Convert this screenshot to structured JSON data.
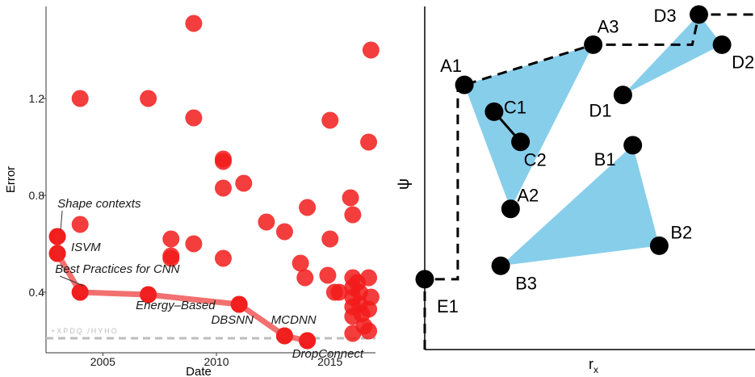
{
  "chart_data": [
    {
      "type": "scatter",
      "xlabel": "Date",
      "ylabel": "Error",
      "xlim": [
        2002.5,
        2017.0
      ],
      "ylim": [
        0.15,
        1.58
      ],
      "x_ticks": [
        2005,
        2010,
        2015
      ],
      "x_tick_labels": [
        "2005",
        "2010",
        "2015"
      ],
      "y_ticks": [
        0.4,
        0.8,
        1.2
      ],
      "y_tick_labels": [
        "0.4",
        "0.8",
        "1.2"
      ],
      "grid": false,
      "colors": {
        "points": "#f21b1b",
        "frontier": "#f26060",
        "baseline": "#bdbdbd"
      },
      "baseline": {
        "y": 0.21,
        "label": "+XPDQ /HYHO"
      },
      "points": [
        {
          "x": 2003.0,
          "y": 0.63
        },
        {
          "x": 2003.0,
          "y": 0.56
        },
        {
          "x": 2004.0,
          "y": 0.4
        },
        {
          "x": 2004.0,
          "y": 1.2
        },
        {
          "x": 2004.0,
          "y": 0.68
        },
        {
          "x": 2007.0,
          "y": 0.39
        },
        {
          "x": 2007.0,
          "y": 1.2
        },
        {
          "x": 2008.0,
          "y": 0.62
        },
        {
          "x": 2008.0,
          "y": 0.55
        },
        {
          "x": 2008.0,
          "y": 0.54
        },
        {
          "x": 2009.0,
          "y": 1.51
        },
        {
          "x": 2009.0,
          "y": 1.12
        },
        {
          "x": 2009.0,
          "y": 0.6
        },
        {
          "x": 2010.3,
          "y": 0.95
        },
        {
          "x": 2010.3,
          "y": 0.94
        },
        {
          "x": 2010.3,
          "y": 0.83
        },
        {
          "x": 2010.3,
          "y": 0.54
        },
        {
          "x": 2011.0,
          "y": 0.35
        },
        {
          "x": 2011.2,
          "y": 0.85
        },
        {
          "x": 2012.2,
          "y": 0.69
        },
        {
          "x": 2013.0,
          "y": 0.65
        },
        {
          "x": 2013.0,
          "y": 0.22
        },
        {
          "x": 2013.7,
          "y": 0.52
        },
        {
          "x": 2013.9,
          "y": 0.46
        },
        {
          "x": 2014.0,
          "y": 0.75
        },
        {
          "x": 2014.0,
          "y": 0.2
        },
        {
          "x": 2014.9,
          "y": 0.47
        },
        {
          "x": 2015.0,
          "y": 1.11
        },
        {
          "x": 2015.0,
          "y": 0.62
        },
        {
          "x": 2015.2,
          "y": 0.4
        },
        {
          "x": 2015.4,
          "y": 0.4
        },
        {
          "x": 2015.9,
          "y": 0.79
        },
        {
          "x": 2016.0,
          "y": 0.72
        },
        {
          "x": 2016.0,
          "y": 0.46
        },
        {
          "x": 2016.0,
          "y": 0.42
        },
        {
          "x": 2016.0,
          "y": 0.38
        },
        {
          "x": 2016.0,
          "y": 0.34
        },
        {
          "x": 2016.0,
          "y": 0.3
        },
        {
          "x": 2016.0,
          "y": 0.23
        },
        {
          "x": 2016.2,
          "y": 0.44
        },
        {
          "x": 2016.3,
          "y": 0.4
        },
        {
          "x": 2016.3,
          "y": 0.35
        },
        {
          "x": 2016.4,
          "y": 0.31
        },
        {
          "x": 2016.5,
          "y": 0.26
        },
        {
          "x": 2016.7,
          "y": 1.02
        },
        {
          "x": 2016.7,
          "y": 0.46
        },
        {
          "x": 2016.7,
          "y": 0.33
        },
        {
          "x": 2016.7,
          "y": 0.24
        },
        {
          "x": 2016.8,
          "y": 1.4
        },
        {
          "x": 2016.8,
          "y": 0.38
        }
      ],
      "frontier": [
        {
          "x": 2003.0,
          "y": 0.63
        },
        {
          "x": 2003.0,
          "y": 0.56
        },
        {
          "x": 2004.0,
          "y": 0.4
        },
        {
          "x": 2007.0,
          "y": 0.39
        },
        {
          "x": 2011.0,
          "y": 0.35
        },
        {
          "x": 2013.0,
          "y": 0.22
        },
        {
          "x": 2014.0,
          "y": 0.2
        }
      ],
      "annotations": [
        {
          "text": "Shape contexts",
          "x": 2003.0,
          "y": 0.63,
          "tx": 2003.0,
          "ty": 0.75,
          "anchor": "start",
          "leader": true
        },
        {
          "text": "ISVM",
          "x": 2003.0,
          "y": 0.56,
          "tx": 2003.6,
          "ty": 0.57,
          "anchor": "start",
          "leader": false
        },
        {
          "text": "Best Practices for CNN",
          "x": 2004.0,
          "y": 0.4,
          "tx": 2002.9,
          "ty": 0.48,
          "anchor": "start",
          "leader": true
        },
        {
          "text": "Energy–Based",
          "x": 2007.0,
          "y": 0.39,
          "tx": 2008.2,
          "ty": 0.33,
          "anchor": "middle",
          "leader": false
        },
        {
          "text": "DBSNN",
          "x": 2011.0,
          "y": 0.35,
          "tx": 2010.7,
          "ty": 0.27,
          "anchor": "middle",
          "leader": false
        },
        {
          "text": "MCDNN",
          "x": 2013.0,
          "y": 0.22,
          "tx": 2013.4,
          "ty": 0.27,
          "anchor": "middle",
          "leader": false
        },
        {
          "text": "DropConnect",
          "x": 2014.0,
          "y": 0.2,
          "tx": 2014.9,
          "ty": 0.13,
          "anchor": "middle",
          "leader": false
        }
      ]
    },
    {
      "type": "diagram",
      "xlabel": "r",
      "xlabel_subscript": "x",
      "ylabel": "ψ",
      "colors": {
        "fill": "#87ceeb",
        "node": "#000000"
      },
      "nodes": [
        {
          "id": "A1",
          "label": "A1",
          "pos": [
            0.12,
            0.79
          ]
        },
        {
          "id": "A2",
          "label": "A2",
          "pos": [
            0.26,
            0.42
          ]
        },
        {
          "id": "A3",
          "label": "A3",
          "pos": [
            0.51,
            0.91
          ]
        },
        {
          "id": "B1",
          "label": "B1",
          "pos": [
            0.63,
            0.61
          ]
        },
        {
          "id": "B2",
          "label": "B2",
          "pos": [
            0.71,
            0.31
          ]
        },
        {
          "id": "B3",
          "label": "B3",
          "pos": [
            0.23,
            0.25
          ]
        },
        {
          "id": "C1",
          "label": "C1",
          "pos": [
            0.21,
            0.71
          ]
        },
        {
          "id": "C2",
          "label": "C2",
          "pos": [
            0.29,
            0.62
          ]
        },
        {
          "id": "D1",
          "label": "D1",
          "pos": [
            0.6,
            0.76
          ]
        },
        {
          "id": "D2",
          "label": "D2",
          "pos": [
            0.9,
            0.91
          ]
        },
        {
          "id": "D3",
          "label": "D3",
          "pos": [
            0.83,
            1.0
          ]
        },
        {
          "id": "E1",
          "label": "E1",
          "pos": [
            0.0,
            0.21
          ]
        }
      ],
      "triangles": [
        [
          "A1",
          "A3",
          "A2"
        ],
        [
          "B1",
          "B2",
          "B3"
        ],
        [
          "D1",
          "D3",
          "D2"
        ]
      ],
      "solid_edges": [
        [
          "C1",
          "C2"
        ]
      ],
      "dashed_paths": [
        [
          [
            0.0,
            0.0
          ],
          [
            0.0,
            0.21
          ],
          [
            0.1,
            0.21
          ],
          [
            0.1,
            0.79
          ],
          [
            0.12,
            0.79
          ],
          [
            0.51,
            0.91
          ],
          [
            0.81,
            0.91
          ],
          [
            0.83,
            1.0
          ],
          [
            1.0,
            1.0
          ]
        ]
      ]
    }
  ]
}
